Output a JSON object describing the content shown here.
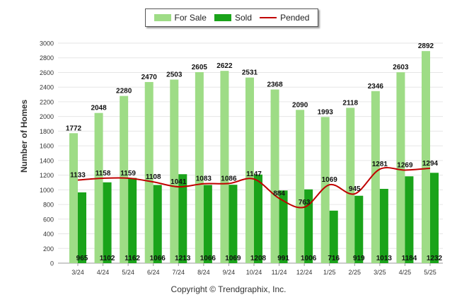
{
  "chart_data": {
    "type": "bar",
    "categories": [
      "3/24",
      "4/24",
      "5/24",
      "6/24",
      "7/24",
      "8/24",
      "9/24",
      "10/24",
      "11/24",
      "12/24",
      "1/25",
      "2/25",
      "3/25",
      "4/25",
      "5/25"
    ],
    "series": [
      {
        "name": "For Sale",
        "kind": "bar",
        "color": "#9edc86",
        "values": [
          1772,
          2048,
          2280,
          2470,
          2503,
          2605,
          2622,
          2531,
          2368,
          2090,
          1993,
          2118,
          2346,
          2603,
          2892
        ]
      },
      {
        "name": "Sold",
        "kind": "bar",
        "color": "#1aa31a",
        "values": [
          965,
          1102,
          1162,
          1066,
          1213,
          1066,
          1069,
          1208,
          991,
          1006,
          716,
          919,
          1013,
          1184,
          1232
        ]
      },
      {
        "name": "Pended",
        "kind": "line",
        "color": "#c00000",
        "values": [
          1133,
          1158,
          1159,
          1108,
          1041,
          1083,
          1086,
          1147,
          884,
          763,
          1069,
          945,
          1281,
          1269,
          1294
        ]
      }
    ],
    "ylabel": "Number of Homes",
    "ylim": [
      0,
      3000
    ],
    "yticks": [
      0,
      200,
      400,
      600,
      800,
      1000,
      1200,
      1400,
      1600,
      1800,
      2000,
      2200,
      2400,
      2600,
      2800,
      3000
    ],
    "grid": true,
    "legend_position": "top-center"
  },
  "footer": {
    "copyright": "Copyright © Trendgraphix, Inc."
  }
}
